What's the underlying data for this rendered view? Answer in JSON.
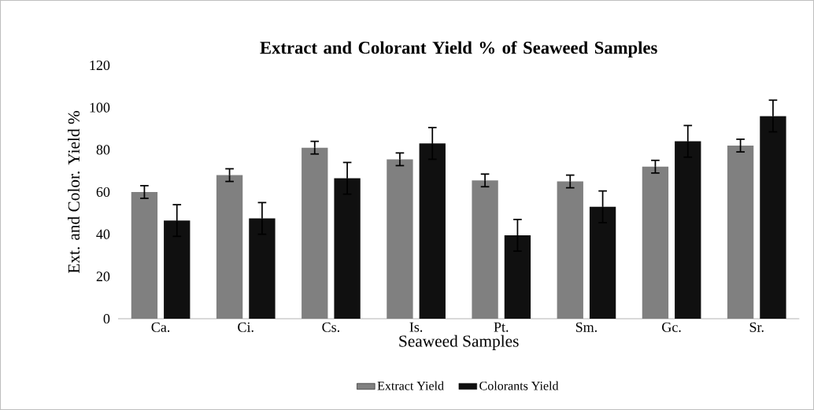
{
  "chart_data": {
    "type": "bar",
    "title": "Extract and Colorant Yield % of Seaweed Samples",
    "xlabel": "Seaweed Samples",
    "ylabel": "Ext. and Color. Yield %",
    "categories": [
      "Ca.",
      "Ci.",
      "Cs.",
      "Is.",
      "Pt.",
      "Sm.",
      "Gc.",
      "Sr."
    ],
    "series": [
      {
        "name": "Extract Yield",
        "color": "#808080",
        "values": [
          60,
          68,
          81,
          75.5,
          65.5,
          65,
          72,
          82
        ],
        "errors": [
          3,
          3,
          3,
          3,
          3,
          3,
          3,
          3
        ]
      },
      {
        "name": "Colorants Yield",
        "color": "#101010",
        "values": [
          46.5,
          47.5,
          66.5,
          83,
          39.5,
          53,
          84,
          96
        ],
        "errors": [
          7.5,
          7.5,
          7.5,
          7.5,
          7.5,
          7.5,
          7.5,
          7.5
        ]
      }
    ],
    "ylim": [
      0,
      120
    ],
    "yticks": [
      0,
      20,
      40,
      60,
      80,
      100,
      120
    ],
    "legend": "bottom"
  }
}
